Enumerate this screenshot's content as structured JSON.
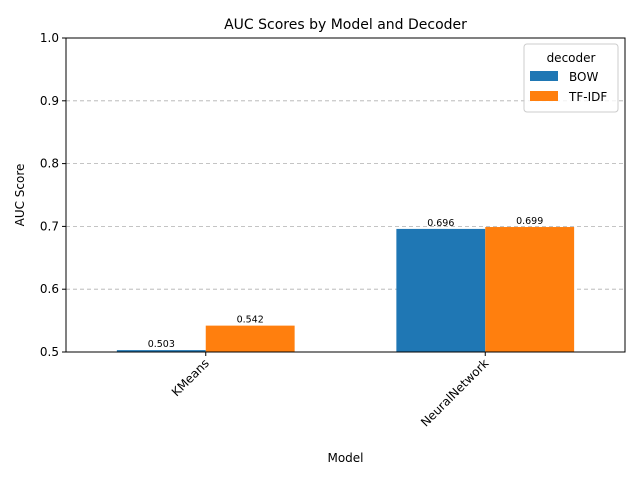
{
  "chart_data": {
    "type": "bar",
    "title": "AUC Scores by Model and Decoder",
    "xlabel": "Model",
    "ylabel": "AUC Score",
    "ylim": [
      0.5,
      1.0
    ],
    "yticks": [
      "0.5",
      "0.6",
      "0.7",
      "0.8",
      "0.9",
      "1.0"
    ],
    "categories": [
      "KMeans",
      "NeuralNetwork"
    ],
    "series": [
      {
        "name": "BOW",
        "values": [
          0.503,
          0.696
        ],
        "labels": [
          "0.503",
          "0.696"
        ],
        "color": "#1f77b4"
      },
      {
        "name": "TF-IDF",
        "values": [
          0.542,
          0.699
        ],
        "labels": [
          "0.542",
          "0.699"
        ],
        "color": "#ff7f0e"
      }
    ],
    "legend": {
      "title": "decoder",
      "placement": "top-right"
    },
    "grid": "y-dashed"
  }
}
